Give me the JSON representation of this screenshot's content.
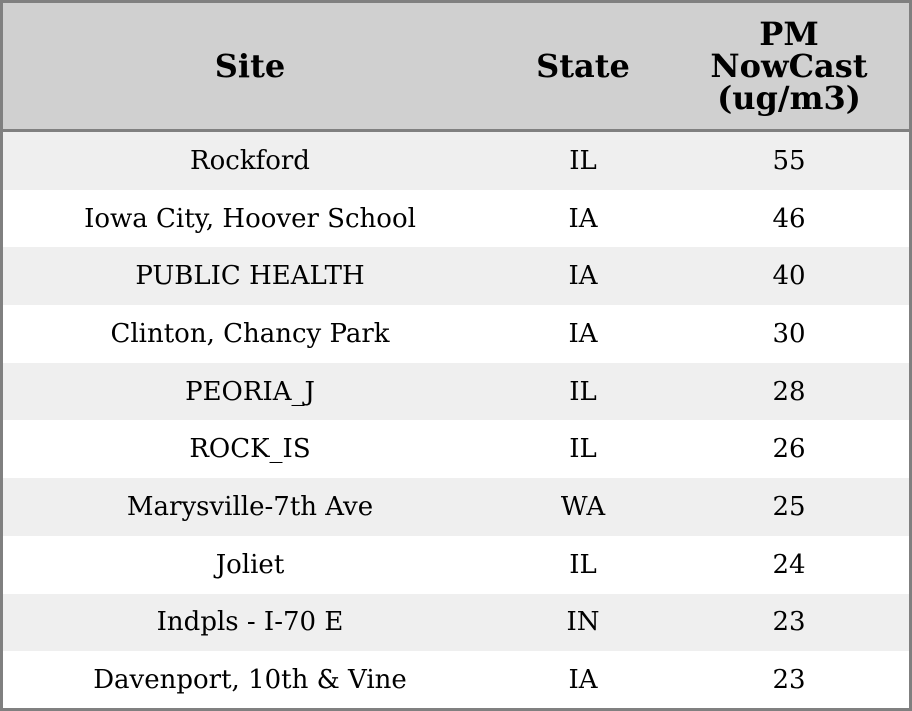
{
  "chart_data": {
    "type": "table",
    "columns": [
      "Site",
      "State",
      "PM NowCast (ug/m3)"
    ],
    "column_header_lines": [
      [
        "Site"
      ],
      [
        "State"
      ],
      [
        "PM",
        "NowCast",
        "(ug/m3)"
      ]
    ],
    "rows": [
      [
        "Rockford",
        "IL",
        "55"
      ],
      [
        "Iowa City, Hoover School",
        "IA",
        "46"
      ],
      [
        "PUBLIC HEALTH",
        "IA",
        "40"
      ],
      [
        "Clinton, Chancy Park",
        "IA",
        "30"
      ],
      [
        "PEORIA_J",
        "IL",
        "28"
      ],
      [
        "ROCK_IS",
        "IL",
        "26"
      ],
      [
        "Marysville-7th Ave",
        "WA",
        "25"
      ],
      [
        "Joliet",
        "IL",
        "24"
      ],
      [
        "Indpls - I-70 E",
        "IN",
        "23"
      ],
      [
        "Davenport, 10th & Vine",
        "IA",
        "23"
      ]
    ],
    "colors": {
      "header_bg": "#d0d0d0",
      "stripe_bg": "#efefef",
      "border": "#808080"
    }
  }
}
